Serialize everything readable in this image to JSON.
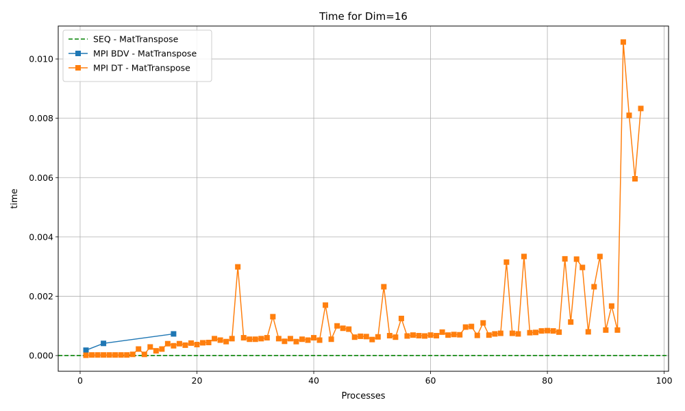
{
  "chart_data": {
    "type": "line",
    "title": "Time for Dim=16",
    "xlabel": "Processes",
    "ylabel": "time",
    "xlim": [
      -3.75,
      100.75
    ],
    "ylim": [
      -0.00053,
      0.01111
    ],
    "x_ticks": [
      0,
      20,
      40,
      60,
      80,
      100
    ],
    "y_ticks": [
      0.0,
      0.002,
      0.004,
      0.006,
      0.008,
      0.01
    ],
    "x_tick_labels": [
      "0",
      "20",
      "40",
      "60",
      "80",
      "100"
    ],
    "y_tick_labels": [
      "0.000",
      "0.002",
      "0.004",
      "0.006",
      "0.008",
      "0.010"
    ],
    "grid": true,
    "legend_position": "top-left",
    "series": [
      {
        "name": "SEQ - MatTranspose",
        "style": "dashed-hline",
        "color": "#008000",
        "y": 0.0
      },
      {
        "name": "MPI BDV - MatTranspose",
        "style": "line-square",
        "color": "#1f77b4",
        "x": [
          1,
          4,
          16
        ],
        "y": [
          0.00018,
          0.00041,
          0.00073
        ]
      },
      {
        "name": "MPI DT - MatTranspose",
        "style": "line-square",
        "color": "#ff7f0e",
        "x": [
          1,
          2,
          3,
          4,
          5,
          6,
          7,
          8,
          9,
          10,
          11,
          12,
          13,
          14,
          15,
          16,
          17,
          18,
          19,
          20,
          21,
          22,
          23,
          24,
          25,
          26,
          27,
          28,
          29,
          30,
          31,
          32,
          33,
          34,
          35,
          36,
          37,
          38,
          39,
          40,
          41,
          42,
          43,
          44,
          45,
          46,
          47,
          48,
          49,
          50,
          51,
          52,
          53,
          54,
          55,
          56,
          57,
          58,
          59,
          60,
          61,
          62,
          63,
          64,
          65,
          66,
          67,
          68,
          69,
          70,
          71,
          72,
          73,
          74,
          75,
          76,
          77,
          78,
          79,
          80,
          81,
          82,
          83,
          84,
          85,
          86,
          87,
          88,
          89,
          90,
          91,
          92,
          93,
          94,
          95,
          96
        ],
        "y": [
          1e-05,
          2e-05,
          2e-05,
          2e-05,
          2e-05,
          2e-05,
          2e-05,
          2e-05,
          4e-05,
          0.00022,
          4e-05,
          0.00029,
          0.00016,
          0.00022,
          0.0004,
          0.00033,
          0.0004,
          0.00035,
          0.00042,
          0.00037,
          0.00043,
          0.00044,
          0.00057,
          0.00052,
          0.00047,
          0.00057,
          0.00299,
          0.0006,
          0.00055,
          0.00055,
          0.00057,
          0.0006,
          0.00131,
          0.00057,
          0.00048,
          0.00057,
          0.00047,
          0.00055,
          0.00052,
          0.0006,
          0.00052,
          0.0017,
          0.00055,
          0.001,
          0.00092,
          0.00089,
          0.00062,
          0.00065,
          0.00064,
          0.00054,
          0.00063,
          0.00232,
          0.00067,
          0.00062,
          0.00125,
          0.00066,
          0.00069,
          0.00067,
          0.00066,
          0.00069,
          0.00067,
          0.00079,
          0.00069,
          0.00071,
          0.0007,
          0.00096,
          0.00098,
          0.00068,
          0.0011,
          0.00069,
          0.00073,
          0.00075,
          0.00315,
          0.00075,
          0.00073,
          0.00334,
          0.00077,
          0.00078,
          0.00083,
          0.00084,
          0.00083,
          0.00079,
          0.00326,
          0.00113,
          0.00325,
          0.00297,
          0.0008,
          0.00232,
          0.00334,
          0.00086,
          0.00167,
          0.00086,
          0.01057,
          0.0081,
          0.00596,
          0.00833
        ]
      }
    ]
  }
}
